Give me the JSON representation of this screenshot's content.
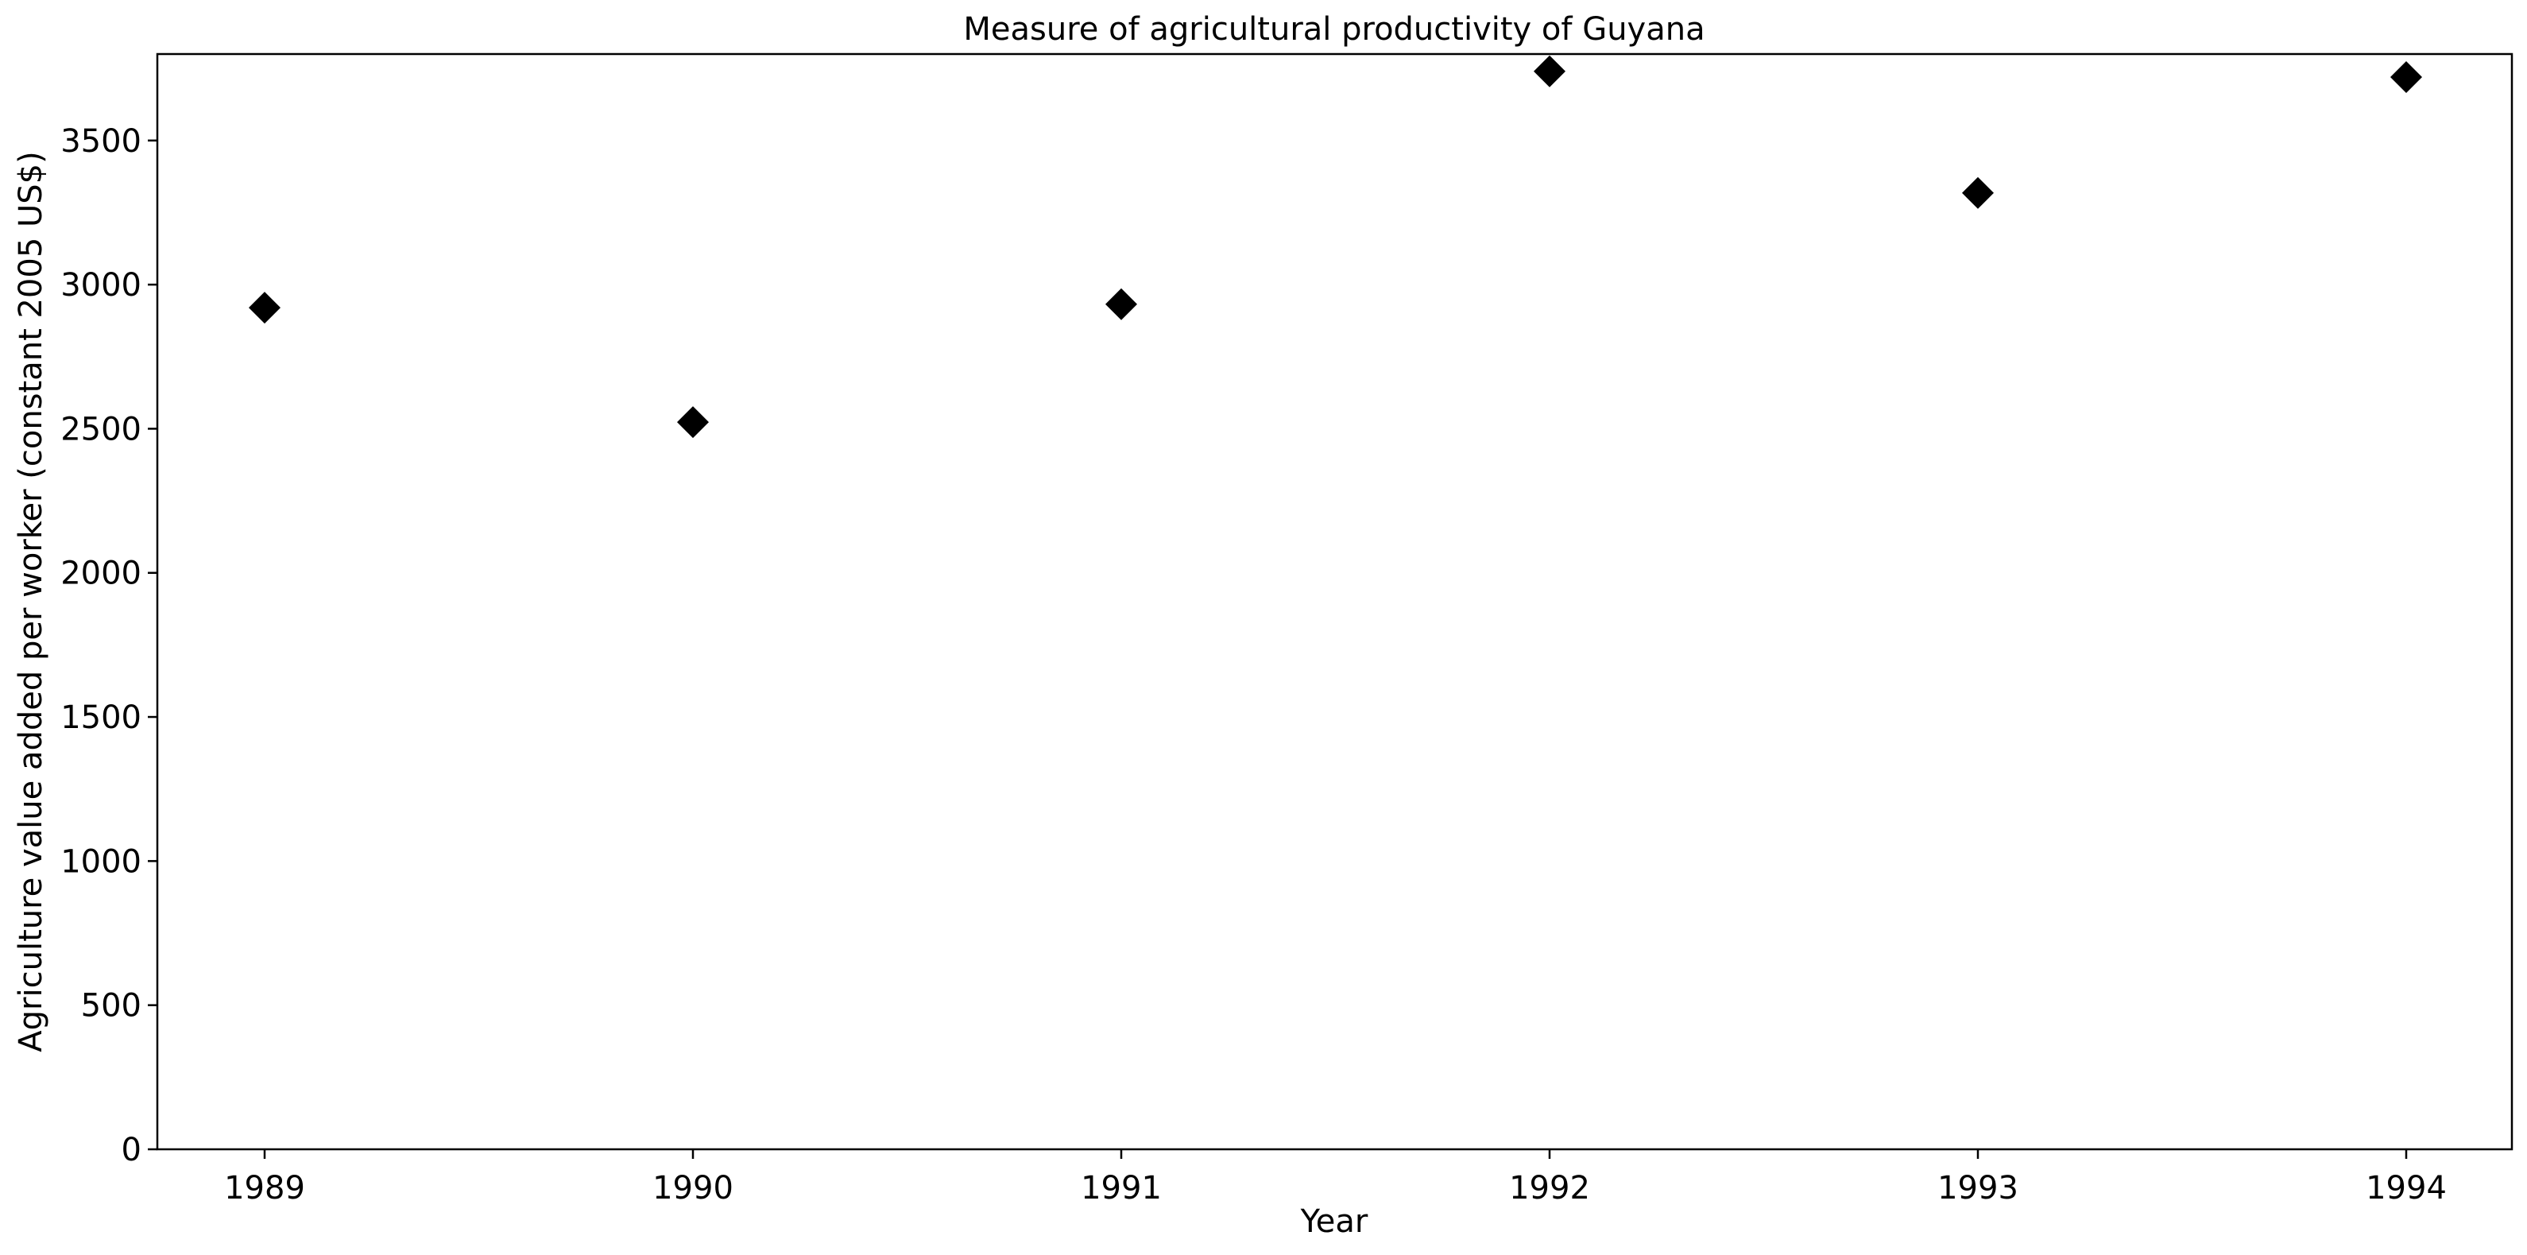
{
  "chart_data": {
    "type": "scatter",
    "title": "Measure of agricultural productivity of Guyana",
    "xlabel": "Year",
    "ylabel": "Agriculture value added per worker (constant 2005 US$)",
    "x": [
      "1989",
      "1990",
      "1991",
      "1992",
      "1993",
      "1994"
    ],
    "series": [
      {
        "values": [
          2920,
          2523,
          2932,
          3740,
          3318,
          3720
        ]
      }
    ],
    "yticks": [
      0,
      500,
      1000,
      1500,
      2000,
      2500,
      3000,
      3500
    ],
    "ylim": [
      0,
      3800
    ],
    "marker": "diamond",
    "marker_color": "#000000",
    "grid": false,
    "legend": "none"
  }
}
